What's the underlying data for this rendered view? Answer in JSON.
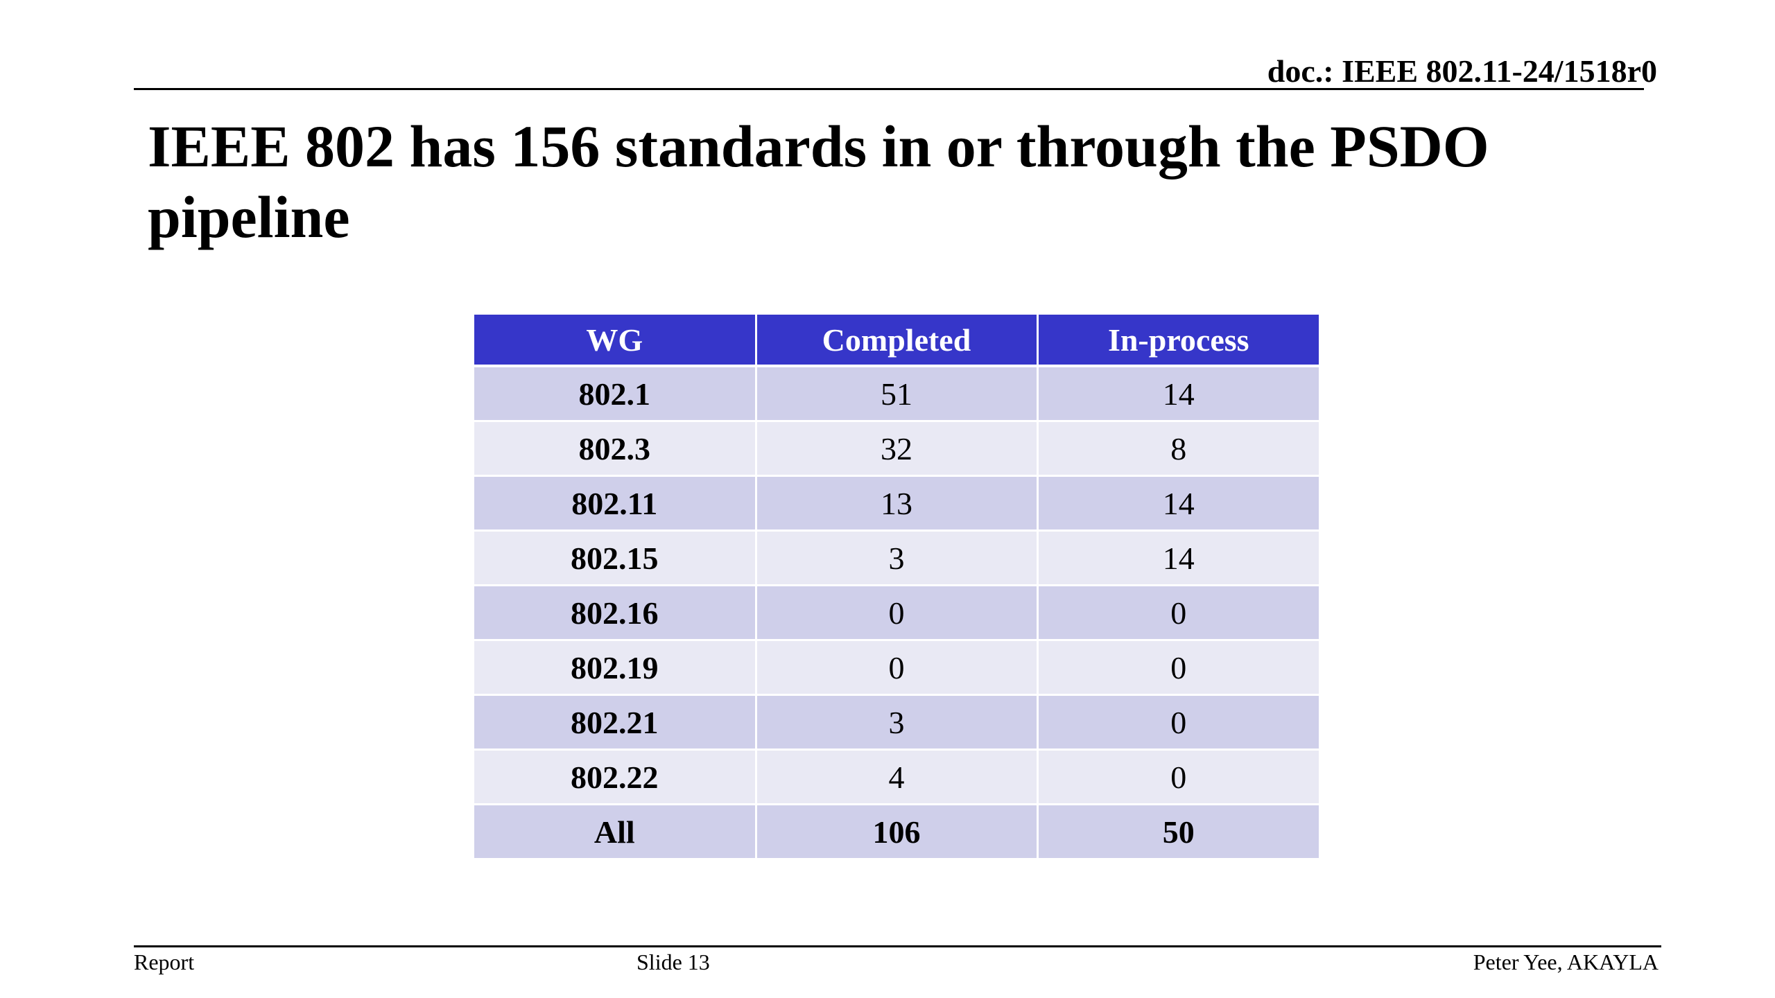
{
  "header": {
    "doc_id": "doc.: IEEE 802.11-24/1518r0"
  },
  "slide": {
    "title_line1": "IEEE 802 has 156 standards in or through the PSDO",
    "title_line2": "pipeline"
  },
  "table": {
    "headers": [
      "WG",
      "Completed",
      "In-process"
    ],
    "rows": [
      {
        "wg": "802.1",
        "completed": "51",
        "in_process": "14"
      },
      {
        "wg": "802.3",
        "completed": "32",
        "in_process": "8"
      },
      {
        "wg": "802.11",
        "completed": "13",
        "in_process": "14"
      },
      {
        "wg": "802.15",
        "completed": "3",
        "in_process": "14"
      },
      {
        "wg": "802.16",
        "completed": "0",
        "in_process": "0"
      },
      {
        "wg": "802.19",
        "completed": "0",
        "in_process": "0"
      },
      {
        "wg": "802.21",
        "completed": "3",
        "in_process": "0"
      },
      {
        "wg": "802.22",
        "completed": "4",
        "in_process": "0"
      }
    ],
    "total": {
      "wg": "All",
      "completed": "106",
      "in_process": "50"
    },
    "colors": {
      "header_bg": "#3636c9",
      "row_odd_bg": "#cfcfea",
      "row_even_bg": "#e9e9f4"
    }
  },
  "footer": {
    "left": "Report",
    "center": "Slide 13",
    "right": "Peter Yee, AKAYLA"
  }
}
